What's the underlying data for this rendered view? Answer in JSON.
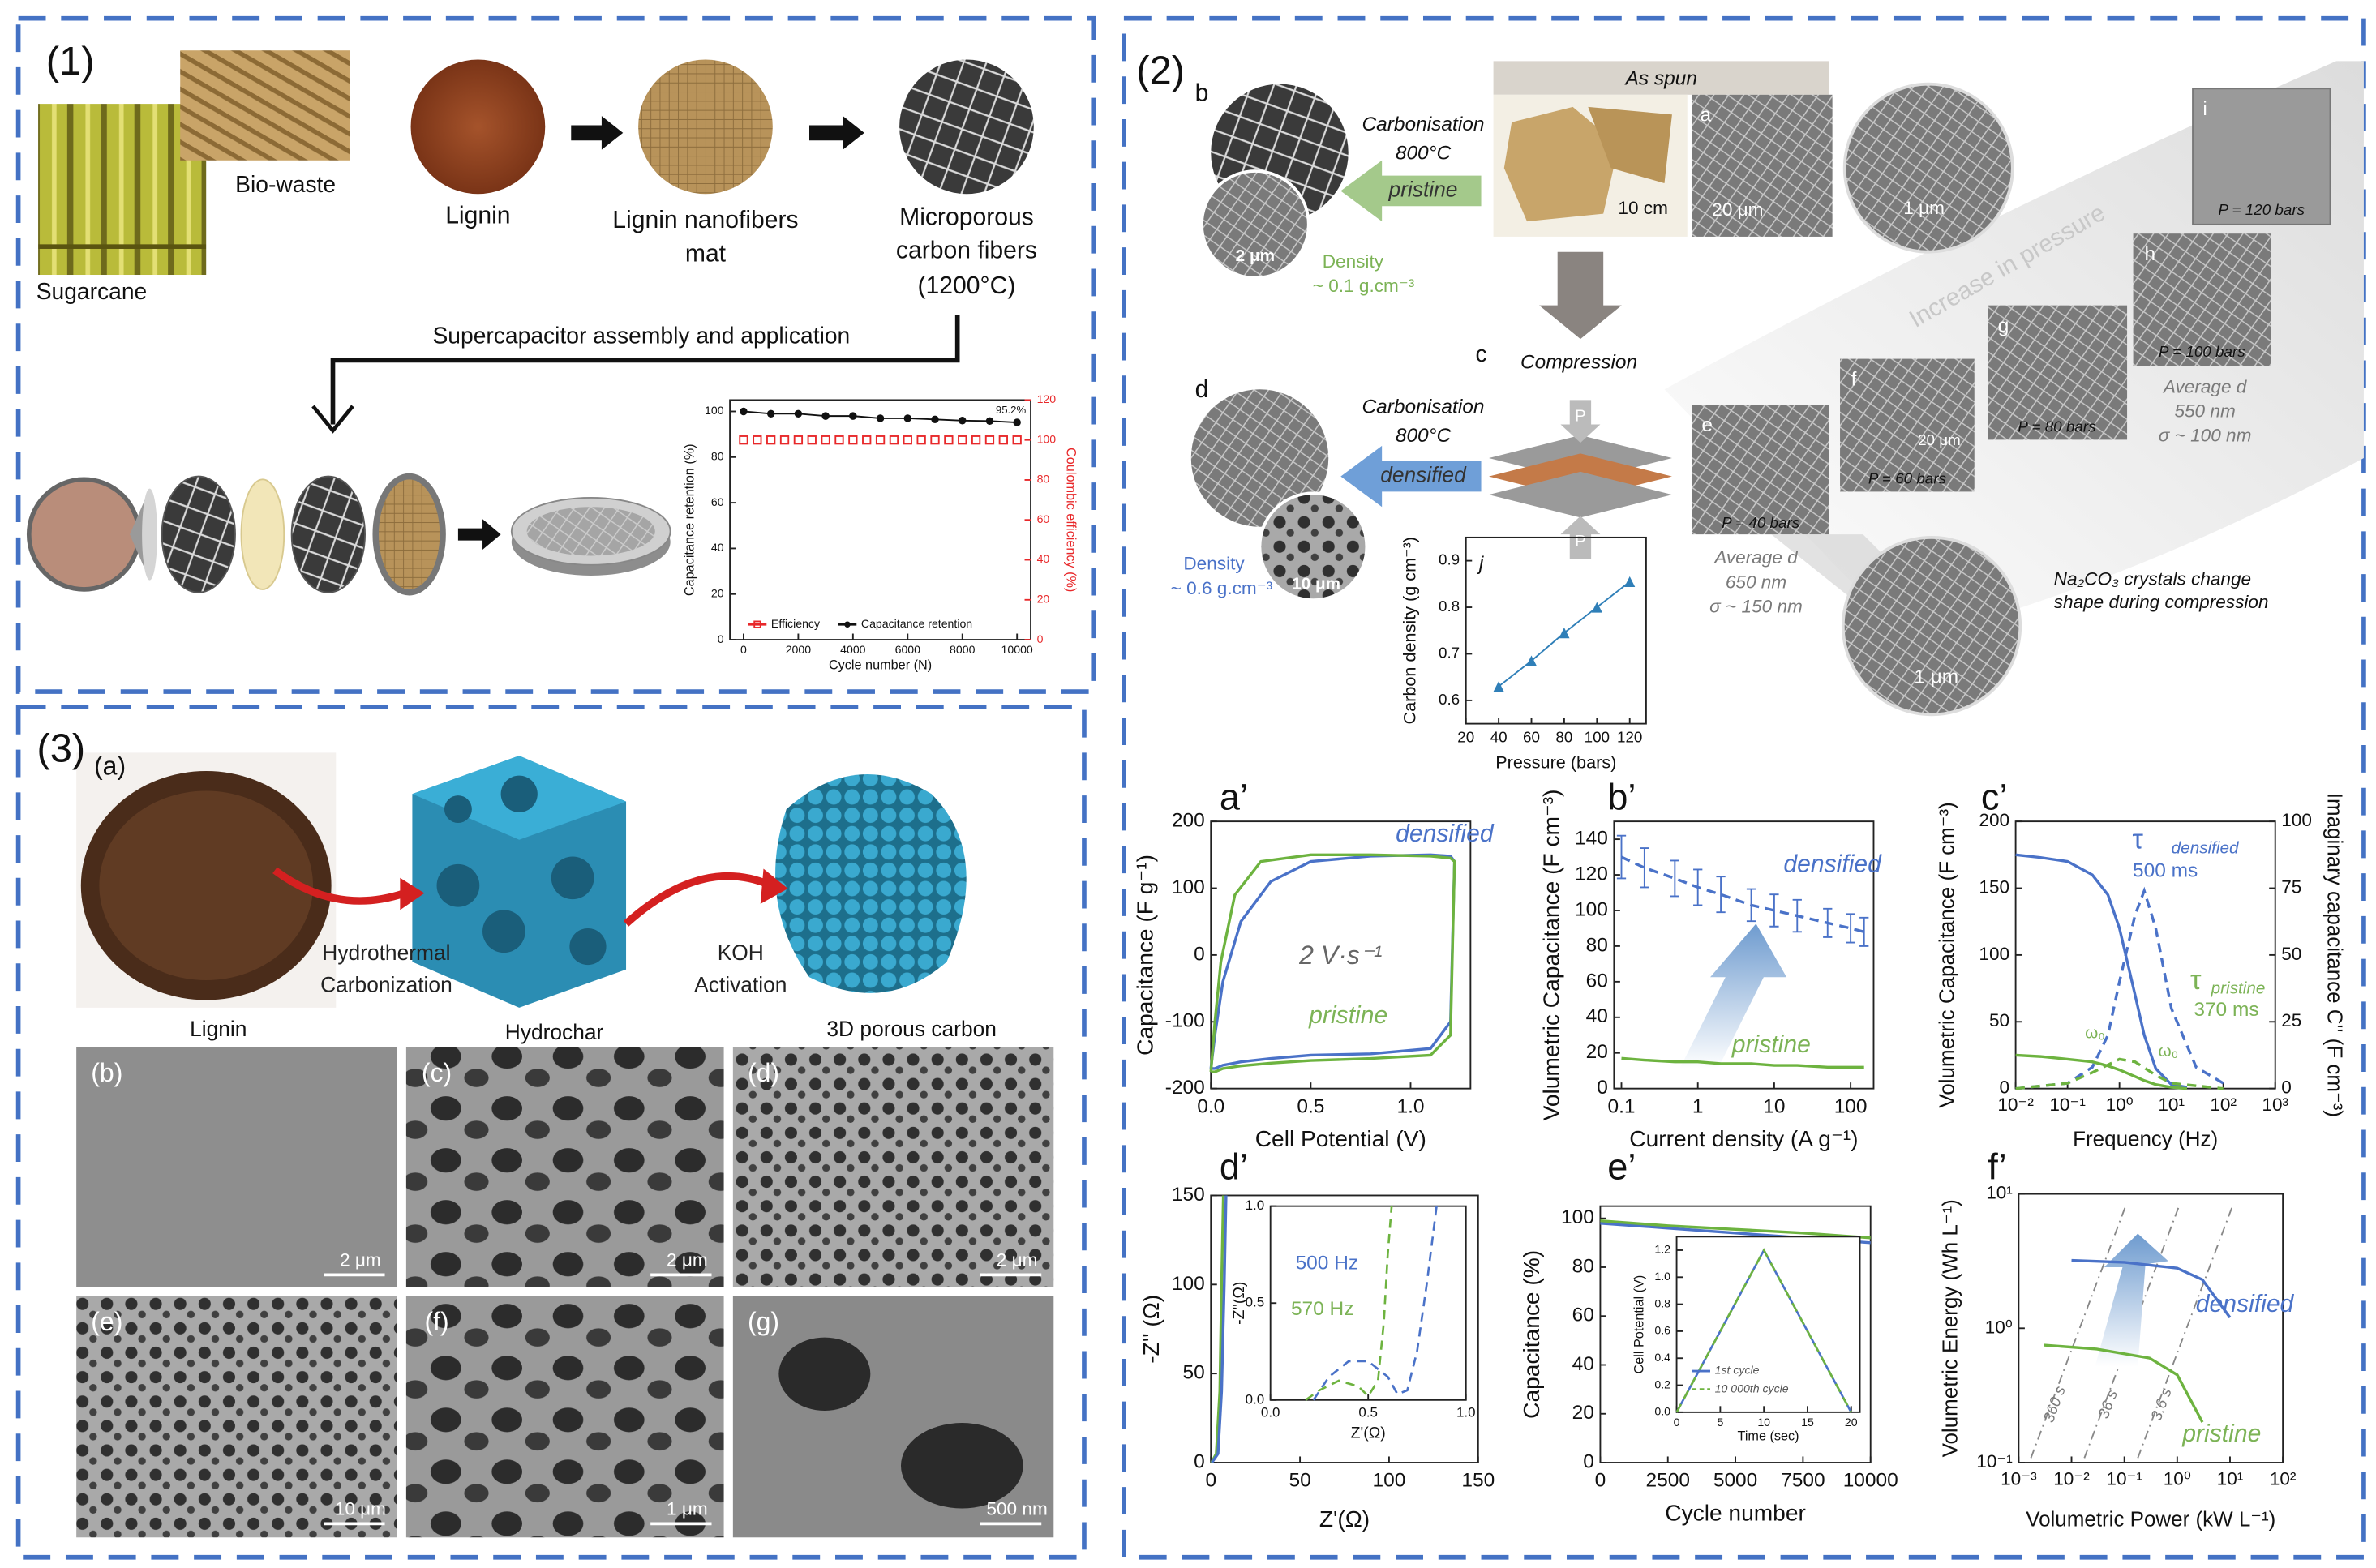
{
  "figure": {
    "p1": {
      "label": "(1)",
      "biowaste": "Bio-waste",
      "sugarcane": "Sugarcane",
      "lignin": "Lignin",
      "mat": [
        "Lignin nanofibers",
        "mat"
      ],
      "carbon": [
        "Microporous",
        "carbon fibers",
        "(1200°C)"
      ],
      "assembly": "Supercapacitor assembly and application"
    },
    "p2": {
      "label": "(2)",
      "b": "b",
      "carb1": [
        "Carbonisation",
        "800°C"
      ],
      "pristine": "pristine",
      "dens1": [
        "Density",
        "~ 0.1 g.cm⁻³"
      ],
      "sb_b": "2 μm",
      "as_spun": "As spun",
      "a": "a",
      "sb_a1": "10 cm",
      "sb_a2": "20 μm",
      "sb_a3": "1 μm",
      "c": "c",
      "compression": "Compression",
      "P": [
        "P",
        "P"
      ],
      "d": "d",
      "carb2": [
        "Carbonisation",
        "800°C"
      ],
      "densified": "densified",
      "dens2": [
        "Density",
        "~ 0.6 g.cm⁻³"
      ],
      "sb_d": "10 μm",
      "e": "e",
      "e_p": "P = 40 bars",
      "e_avg": [
        "Average d",
        "650 nm",
        "σ ~ 150 nm"
      ],
      "f": "f",
      "f_sb": "20 μm",
      "f_p": "P = 60 bars",
      "g": "g",
      "g_p": "P = 80 bars",
      "h": "h",
      "h_p": "P = 100 bars",
      "h_avg": [
        "Average d",
        "550 nm",
        "σ ~ 100 nm"
      ],
      "i": "i",
      "i_p": "P = 120 bars",
      "increase": "Increase in pressure",
      "sb_crystal": "1 μm",
      "crystal": [
        "Na₂CO₃ crystals change",
        "shape during compression"
      ],
      "sub": [
        "a’",
        "b’",
        "c’",
        "d’",
        "e’",
        "f’"
      ]
    },
    "p3": {
      "label": "(3)",
      "a": "(a)",
      "htc": [
        "Hydrothermal",
        "Carbonization"
      ],
      "koh": [
        "KOH",
        "Activation"
      ],
      "names": [
        "Lignin",
        "Hydrochar",
        "3D porous carbon"
      ],
      "sem": [
        {
          "label": "(b)",
          "scale": "2 μm"
        },
        {
          "label": "(c)",
          "scale": "2 μm"
        },
        {
          "label": "(d)",
          "scale": "2 μm"
        },
        {
          "label": "(e)",
          "scale": "10 μm"
        },
        {
          "label": "(f)",
          "scale": "1 μm"
        },
        {
          "label": "(g)",
          "scale": "500 nm"
        }
      ]
    }
  },
  "chart_data": [
    {
      "type": "line",
      "xlabel": "Cycle number (N)",
      "ylabel": "Capacitance retention (%)",
      "y2label": "Coulombic efficiency (%)",
      "x": [
        0,
        1000,
        2000,
        3000,
        4000,
        5000,
        6000,
        7000,
        8000,
        9000,
        10000
      ],
      "xlim": [
        -500,
        10500
      ],
      "xticks": [
        0,
        2000,
        4000,
        6000,
        8000,
        10000
      ],
      "ylim": [
        0,
        105
      ],
      "yticks": [
        0,
        20,
        40,
        60,
        80,
        100
      ],
      "y2lim": [
        0,
        120
      ],
      "y2ticks": [
        0,
        20,
        40,
        60,
        80,
        100,
        120
      ],
      "y2color": "#e8282a",
      "series": [
        {
          "name": "Efficiency",
          "color": "#e8282a",
          "axis": "y2",
          "marker": "square",
          "line": false,
          "x": [
            0,
            500,
            1000,
            1500,
            2000,
            2500,
            3000,
            3500,
            4000,
            4500,
            5000,
            5500,
            6000,
            6500,
            7000,
            7500,
            8000,
            8500,
            9000,
            9500,
            10000
          ],
          "values": [
            100,
            100,
            100,
            100,
            100,
            100,
            100,
            100,
            100,
            100,
            100,
            100,
            100,
            100,
            100,
            100,
            100,
            100,
            100,
            100,
            100
          ]
        },
        {
          "name": "Capacitance retention",
          "color": "#111111",
          "marker": "circle",
          "values": [
            100,
            99,
            99,
            98,
            98,
            97,
            97,
            96.5,
            96,
            95.8,
            95.2
          ]
        }
      ],
      "legend": "lower left",
      "annotations": [
        "95.2%"
      ]
    },
    {
      "type": "line",
      "xlabel": "Pressure (bars)",
      "ylabel": "Carbon density (g cm⁻³)",
      "x": [
        40,
        60,
        80,
        100,
        120
      ],
      "xlim": [
        20,
        130
      ],
      "xticks": [
        20,
        40,
        60,
        80,
        100,
        120
      ],
      "ylim": [
        0.55,
        0.95
      ],
      "yticks": [
        0.6,
        0.7,
        0.8,
        0.9
      ],
      "series": [
        {
          "color": "#2f7fb8",
          "marker": "triangle",
          "values": [
            0.63,
            0.685,
            0.745,
            0.8,
            0.855
          ]
        }
      ],
      "annotations": [
        "j"
      ]
    },
    {
      "type": "line",
      "xlabel": "Cell Potential (V)",
      "ylabel": "Capacitance (F g⁻¹)",
      "xlim": [
        0,
        1.3
      ],
      "xticks": [
        {
          "value": 0,
          "label": "0.0"
        },
        0.5,
        {
          "value": 1,
          "label": "1.0"
        }
      ],
      "ylim": [
        -200,
        200
      ],
      "yticks": [
        -200,
        -100,
        0,
        100,
        200
      ],
      "series": [
        {
          "color": "#4a72c8",
          "x": [
            0,
            0.02,
            0.06,
            0.15,
            0.3,
            0.5,
            0.8,
            1.1,
            1.2,
            1.22,
            1.2,
            1.1,
            0.8,
            0.5,
            0.3,
            0.15,
            0.06,
            0.02,
            0
          ],
          "values": [
            -170,
            -120,
            -40,
            50,
            110,
            140,
            148,
            150,
            148,
            140,
            -100,
            -140,
            -148,
            -150,
            -155,
            -160,
            -165,
            -170,
            -170
          ]
        },
        {
          "color": "#6db33f",
          "x": [
            0,
            0.02,
            0.05,
            0.12,
            0.25,
            0.5,
            0.8,
            1.1,
            1.2,
            1.22,
            1.2,
            1.1,
            0.8,
            0.5,
            0.3,
            0.15,
            0.06,
            0.02,
            0
          ],
          "values": [
            -175,
            -100,
            -10,
            90,
            140,
            150,
            150,
            148,
            145,
            140,
            -120,
            -150,
            -155,
            -158,
            -162,
            -166,
            -170,
            -175,
            -175
          ]
        }
      ],
      "annotations": [
        "densified",
        "pristine",
        "2 V·s⁻¹"
      ]
    },
    {
      "type": "line",
      "xlabel": "Current density (A g⁻¹)",
      "ylabel": "Volumetric Capacitance (F cm⁻³)",
      "xlog": true,
      "x": [
        0.1,
        0.2,
        0.5,
        1,
        2,
        5,
        10,
        20,
        50,
        100,
        150
      ],
      "xlim": [
        0.08,
        200
      ],
      "xticks": [
        0.1,
        1,
        10,
        100
      ],
      "ylim": [
        0,
        150
      ],
      "yticks": [
        0,
        20,
        40,
        60,
        80,
        100,
        120,
        140
      ],
      "series": [
        {
          "color": "#4a72c8",
          "dash": true,
          "values": [
            130,
            124,
            118,
            113,
            109,
            103,
            100,
            97,
            93,
            90,
            88
          ],
          "errors": [
            12,
            11,
            10,
            10,
            10,
            9,
            9,
            9,
            8,
            8,
            8
          ]
        },
        {
          "color": "#6db33f",
          "values": [
            17,
            16,
            15,
            15,
            14,
            14,
            13,
            13,
            12,
            12,
            12
          ]
        }
      ],
      "annotations": [
        "densified",
        "pristine"
      ]
    },
    {
      "type": "line",
      "xlabel": "Frequency (Hz)",
      "ylabel": "Volumetric Capacitance (F cm⁻³)",
      "y2label": "Imaginary capacitance C'' (F cm⁻³)",
      "xlog": true,
      "xlim": [
        0.01,
        1000
      ],
      "xticks": [
        {
          "value": 0.01,
          "label": "10⁻²"
        },
        {
          "value": 0.1,
          "label": "10⁻¹"
        },
        {
          "value": 1,
          "label": "10⁰"
        },
        {
          "value": 10,
          "label": "10¹"
        },
        {
          "value": 100,
          "label": "10²"
        },
        {
          "value": 1000,
          "label": "10³"
        }
      ],
      "ylim": [
        0,
        200
      ],
      "yticks": [
        0,
        50,
        100,
        150,
        200
      ],
      "y2lim": [
        0,
        100
      ],
      "y2ticks": [
        0,
        25,
        50,
        75,
        100
      ],
      "series": [
        {
          "color": "#4a72c8",
          "x": [
            0.01,
            0.03,
            0.1,
            0.3,
            0.6,
            1,
            2,
            3,
            5,
            10,
            20
          ],
          "values": [
            175,
            173,
            170,
            160,
            145,
            120,
            70,
            40,
            15,
            3,
            1
          ]
        },
        {
          "color": "#6db33f",
          "x": [
            0.01,
            0.03,
            0.1,
            0.3,
            0.6,
            1,
            2,
            3,
            5,
            10,
            20
          ],
          "values": [
            25,
            24,
            22,
            20,
            17,
            14,
            9,
            6,
            3,
            1,
            0
          ]
        },
        {
          "color": "#4a72c8",
          "dash": true,
          "axis": "y2",
          "x": [
            0.01,
            0.1,
            0.3,
            0.6,
            1,
            2,
            3,
            5,
            10,
            30,
            100
          ],
          "values": [
            0,
            2,
            8,
            20,
            40,
            65,
            74,
            60,
            30,
            8,
            2
          ]
        },
        {
          "color": "#6db33f",
          "dash": true,
          "axis": "y2",
          "x": [
            0.01,
            0.1,
            0.3,
            1,
            2,
            5,
            10,
            100
          ],
          "values": [
            0,
            2,
            6,
            11,
            10,
            5,
            2,
            0
          ]
        }
      ],
      "annotations": [
        "τ",
        "densified",
        "500 ms",
        "τ",
        "pristine",
        "370 ms",
        "ω₀",
        "ω₀"
      ]
    },
    {
      "type": "line",
      "xlabel": "Z'(Ω)",
      "ylabel": "-Z'' (Ω)",
      "xlim": [
        0,
        150
      ],
      "xticks": [
        0,
        50,
        100,
        150
      ],
      "ylim": [
        0,
        150
      ],
      "yticks": [
        0,
        50,
        100,
        150
      ],
      "series": [
        {
          "color": "#6db33f",
          "x": [
            0.3,
            3,
            5,
            6,
            7
          ],
          "values": [
            0,
            5,
            40,
            100,
            150
          ]
        },
        {
          "color": "#4a72c8",
          "x": [
            0.5,
            4,
            6,
            7.5,
            8.5
          ],
          "values": [
            0,
            5,
            40,
            100,
            150
          ]
        }
      ]
    },
    {
      "type": "line",
      "xlabel": "Z'(Ω)",
      "ylabel": "-Z''(Ω)",
      "xlim": [
        0,
        1
      ],
      "xticks": [
        {
          "value": 0,
          "label": "0.0"
        },
        0.5,
        {
          "value": 1,
          "label": "1.0"
        }
      ],
      "ylim": [
        0,
        1
      ],
      "yticks": [
        {
          "value": 0,
          "label": "0.0"
        },
        0.5,
        {
          "value": 1,
          "label": "1.0"
        }
      ],
      "series": [
        {
          "color": "#4a72c8",
          "dash": true,
          "x": [
            0.22,
            0.3,
            0.4,
            0.5,
            0.6,
            0.65,
            0.7,
            0.75,
            0.8,
            0.85
          ],
          "values": [
            0,
            0.12,
            0.2,
            0.2,
            0.12,
            0.03,
            0.05,
            0.25,
            0.6,
            1
          ]
        },
        {
          "color": "#6db33f",
          "dash": true,
          "x": [
            0.18,
            0.25,
            0.35,
            0.45,
            0.5,
            0.55,
            0.58,
            0.6,
            0.62
          ],
          "values": [
            0,
            0.05,
            0.1,
            0.07,
            0.02,
            0.1,
            0.4,
            0.75,
            1
          ]
        }
      ],
      "annotations": [
        "500 Hz",
        "570 Hz"
      ]
    },
    {
      "type": "line",
      "xlabel": "Cycle number",
      "ylabel": "Capacitance (%)",
      "x": [
        0,
        2500,
        5000,
        7500,
        10000
      ],
      "xlim": [
        0,
        10000
      ],
      "xticks": [
        0,
        2500,
        5000,
        7500,
        10000
      ],
      "ylim": [
        0,
        105
      ],
      "yticks": [
        0,
        20,
        40,
        60,
        80,
        100
      ],
      "series": [
        {
          "color": "#4a72c8",
          "values": [
            98,
            96,
            94,
            92,
            90
          ]
        },
        {
          "color": "#6db33f",
          "values": [
            99,
            97,
            95.5,
            94,
            92
          ]
        }
      ]
    },
    {
      "type": "line",
      "xlabel": "Time (sec)",
      "ylabel": "Cell Potential (V)",
      "x": [
        0,
        10,
        20
      ],
      "xlim": [
        0,
        21
      ],
      "xticks": [
        0,
        5,
        10,
        15,
        20
      ],
      "ylim": [
        0,
        1.3
      ],
      "yticks": [
        {
          "value": 0,
          "label": "0.0"
        },
        0.2,
        0.4,
        0.6,
        0.8,
        {
          "value": 1,
          "label": "1.0"
        },
        1.2
      ],
      "series": [
        {
          "name": "1st cycle",
          "color": "#4a72c8",
          "values": [
            0,
            1.2,
            0
          ]
        },
        {
          "name": "10 000th cycle",
          "color": "#6db33f",
          "dash": true,
          "values": [
            0,
            1.2,
            0
          ]
        }
      ],
      "legend": "lower left"
    },
    {
      "type": "line",
      "xlabel": "Volumetric Power (kW L⁻¹)",
      "ylabel": "Volumetric Energy (Wh L⁻¹)",
      "xlog": true,
      "ylog": true,
      "xlim": [
        0.001,
        100
      ],
      "xticks": [
        {
          "value": 0.001,
          "label": "10⁻³"
        },
        {
          "value": 0.01,
          "label": "10⁻²"
        },
        {
          "value": 0.1,
          "label": "10⁻¹"
        },
        {
          "value": 1,
          "label": "10⁰"
        },
        {
          "value": 10,
          "label": "10¹"
        },
        {
          "value": 100,
          "label": "10²"
        }
      ],
      "ylim": [
        0.1,
        10
      ],
      "yticks": [
        {
          "value": 0.1,
          "label": "10⁻¹"
        },
        {
          "value": 1,
          "label": "10⁰"
        },
        {
          "value": 10,
          "label": "10¹"
        }
      ],
      "series": [
        {
          "color": "#4a72c8",
          "x": [
            0.01,
            0.1,
            1,
            3,
            10
          ],
          "values": [
            3.2,
            3.1,
            2.8,
            2.3,
            1.2
          ]
        },
        {
          "color": "#6db33f",
          "x": [
            0.003,
            0.03,
            0.3,
            1,
            3
          ],
          "values": [
            0.75,
            0.7,
            0.6,
            0.45,
            0.2
          ]
        }
      ],
      "annotations": [
        "densified",
        "pristine",
        "360 s",
        "36 s",
        "3.6 s"
      ]
    }
  ]
}
